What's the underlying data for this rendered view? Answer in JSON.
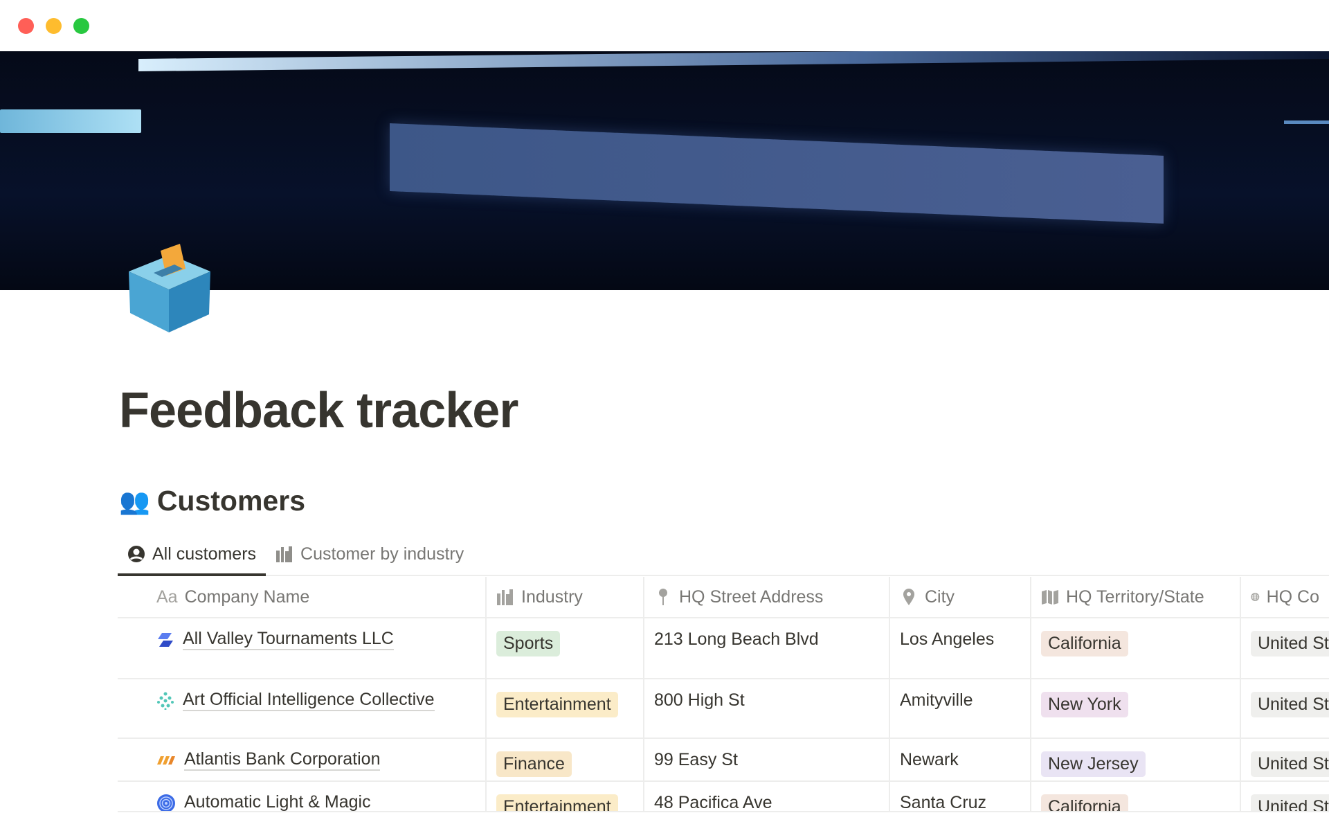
{
  "window": {
    "controls": [
      "close",
      "minimize",
      "maximize"
    ],
    "colors": {
      "close": "#ff5f57",
      "minimize": "#febc2e",
      "maximize": "#28c840"
    }
  },
  "page": {
    "title": "Feedback tracker",
    "icon": "ballot-box-icon"
  },
  "section": {
    "icon": "busts-icon",
    "title": "Customers"
  },
  "tabs": [
    {
      "label": "All customers",
      "icon": "person-circle-icon",
      "active": true
    },
    {
      "label": "Customer by industry",
      "icon": "buildings-icon",
      "active": false
    }
  ],
  "columns": [
    {
      "label": "Company Name",
      "icon": "Aa"
    },
    {
      "label": "Industry",
      "icon": "buildings-icon"
    },
    {
      "label": "HQ Street Address",
      "icon": "pin-icon"
    },
    {
      "label": "City",
      "icon": "location-icon"
    },
    {
      "label": "HQ Territory/State",
      "icon": "map-icon"
    },
    {
      "label": "HQ Co",
      "icon": "globe-icon"
    }
  ],
  "rows": [
    {
      "company": "All Valley Tournaments LLC",
      "logo": "blue-parallelogram-logo",
      "industry": "Sports",
      "industry_color": "#dbeddb",
      "address": "213 Long Beach Blvd",
      "city": "Los Angeles",
      "state": "California",
      "state_color": "#f4e6de",
      "country": "United St"
    },
    {
      "company": "Art Official Intelligence Collective",
      "logo": "teal-dots-logo",
      "industry": "Entertainment",
      "industry_color": "#fbecc8",
      "address": "800 High St",
      "city": "Amityville",
      "state": "New York",
      "state_color": "#efe0ee",
      "country": "United St"
    },
    {
      "company": "Atlantis Bank Corporation",
      "logo": "orange-stripes-logo",
      "industry": "Finance",
      "industry_color": "#f8e7c8",
      "address": "99 Easy St",
      "city": "Newark",
      "state": "New Jersey",
      "state_color": "#e9e4f4",
      "country": "United St"
    },
    {
      "company": "Automatic Light & Magic",
      "logo": "blue-spiral-logo",
      "industry": "Entertainment",
      "industry_color": "#fbecc8",
      "address": "48 Pacifica Ave",
      "city": "Santa Cruz",
      "state": "California",
      "state_color": "#f4e6de",
      "country": "United St"
    }
  ]
}
